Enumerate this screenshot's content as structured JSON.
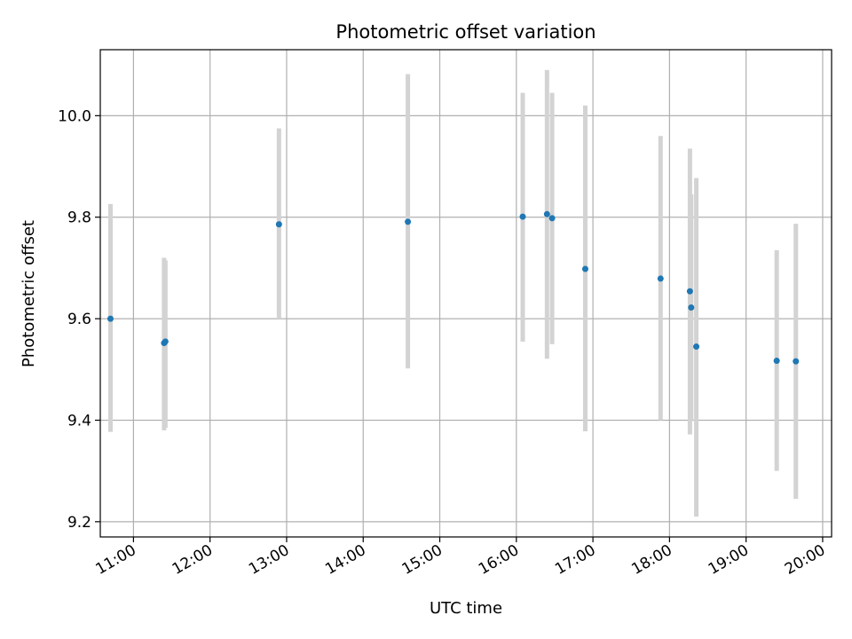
{
  "chart_data": {
    "type": "scatter",
    "title": "Photometric offset variation",
    "xlabel": "UTC time",
    "ylabel": "Photometric offset",
    "grid": true,
    "legend": "none",
    "x_ticks": [
      "11:00",
      "12:00",
      "13:00",
      "14:00",
      "15:00",
      "16:00",
      "17:00",
      "18:00",
      "19:00",
      "20:00"
    ],
    "x_tick_hours": [
      11,
      12,
      13,
      14,
      15,
      16,
      17,
      18,
      19,
      20
    ],
    "y_ticks": [
      "9.2",
      "9.4",
      "9.6",
      "9.8",
      "10.0"
    ],
    "y_tick_values": [
      9.2,
      9.4,
      9.6,
      9.8,
      10.0
    ],
    "xlim": [
      "10:34",
      "20:07"
    ],
    "ylim": [
      9.17,
      10.13
    ],
    "colors": {
      "point": "#1f77b4",
      "errorbar": "#d3d3d3",
      "grid": "#b0b0b0"
    },
    "points": [
      {
        "time": "10:42",
        "y": 9.6,
        "ylow": 9.377,
        "yhigh": 9.826
      },
      {
        "time": "11:24",
        "y": 9.552,
        "ylow": 9.38,
        "yhigh": 9.72
      },
      {
        "time": "11:25",
        "y": 9.555,
        "ylow": 9.385,
        "yhigh": 9.715
      },
      {
        "time": "12:54",
        "y": 9.786,
        "ylow": 9.6,
        "yhigh": 9.975
      },
      {
        "time": "14:35",
        "y": 9.791,
        "ylow": 9.502,
        "yhigh": 10.082
      },
      {
        "time": "16:05",
        "y": 9.801,
        "ylow": 9.555,
        "yhigh": 10.045
      },
      {
        "time": "16:24",
        "y": 9.806,
        "ylow": 9.521,
        "yhigh": 10.09
      },
      {
        "time": "16:28",
        "y": 9.798,
        "ylow": 9.55,
        "yhigh": 10.045
      },
      {
        "time": "16:54",
        "y": 9.698,
        "ylow": 9.378,
        "yhigh": 10.02
      },
      {
        "time": "17:53",
        "y": 9.679,
        "ylow": 9.4,
        "yhigh": 9.96
      },
      {
        "time": "18:16",
        "y": 9.654,
        "ylow": 9.372,
        "yhigh": 9.935
      },
      {
        "time": "18:17",
        "y": 9.622,
        "ylow": 9.4,
        "yhigh": 9.845
      },
      {
        "time": "18:21",
        "y": 9.545,
        "ylow": 9.21,
        "yhigh": 9.877
      },
      {
        "time": "19:24",
        "y": 9.517,
        "ylow": 9.3,
        "yhigh": 9.735
      },
      {
        "time": "19:39",
        "y": 9.516,
        "ylow": 9.245,
        "yhigh": 9.787
      }
    ]
  }
}
